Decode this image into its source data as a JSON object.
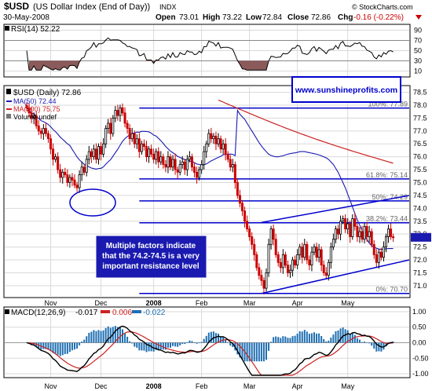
{
  "header": {
    "symbol": "$USD",
    "name": "(US Dollar Index (End of Day))",
    "exchange": "INDX",
    "date": "30-May-2008",
    "open_label": "Open",
    "open": "73.01",
    "high_label": "High",
    "high": "73.22",
    "low_label": "Low",
    "low": "72.84",
    "close_label": "Close",
    "close": "72.86",
    "chg_label": "Chg",
    "chg": "-0.16 (-0.22%)",
    "brand": "© StockCharts.com"
  },
  "colors": {
    "up": "#000000",
    "down": "#cc0000",
    "ma50": "#1a1ab0",
    "ma200": "#cc2222",
    "annot": "#0000cc",
    "hist": "#1f6fb2",
    "rsi_fill": "#8b5a5a",
    "grid": "#d9d9d9"
  },
  "rsi_panel": {
    "label": "RSI(14) 52.22",
    "ticks": [
      "90",
      "70",
      "50",
      "30",
      "10"
    ],
    "tick_values": [
      90,
      70,
      50,
      30,
      10
    ]
  },
  "price_panel": {
    "legend_title": "$USD (Daily) 72.86",
    "legend_ma50": "MA(50) 72.44",
    "legend_ma200": "MA(200) 75.75",
    "legend_vol": "Volume undef",
    "website": "www.sunshineprofits.com",
    "callout": [
      "Multiple factors indicate",
      "that the 74.2-74.5 is a very",
      "important resistance level"
    ],
    "fib_labels": [
      "100%: 77.89",
      "61.8%: 75.14",
      "50%: 74.29",
      "38.2%: 73.44",
      "0%: 70.70"
    ],
    "y_ticks": [
      "78.5",
      "78.0",
      "77.5",
      "77.0",
      "76.5",
      "76.0",
      "75.5",
      "75.0",
      "74.5",
      "74.0",
      "73.5",
      "73.0",
      "72.5",
      "72.0",
      "71.5",
      "71.0"
    ],
    "y_values": [
      78.5,
      78.0,
      77.5,
      77.0,
      76.5,
      76.0,
      75.5,
      75.0,
      74.5,
      74.0,
      73.5,
      73.0,
      72.5,
      72.0,
      71.5,
      71.0
    ]
  },
  "macd_panel": {
    "label": "MACD(12,26,9)",
    "macd": "-0.017",
    "signal": "0.006",
    "hist": "-0.022",
    "ticks": [
      "1.00",
      "0.50",
      "0.00",
      "-0.50",
      "-1.00"
    ],
    "tick_values": [
      1.0,
      0.5,
      0.0,
      -0.5,
      -1.0
    ]
  },
  "x_labels": [
    "Nov",
    "Dec",
    "2008",
    "Feb",
    "Mar",
    "Apr",
    "May"
  ],
  "chart_data": {
    "type": "candlestick",
    "title": "$USD (US Dollar Index (End of Day))",
    "ylim": [
      70.6,
      78.7
    ],
    "x_months": [
      "Nov",
      "Dec",
      "2008",
      "Feb",
      "Mar",
      "Apr",
      "May"
    ],
    "x_month_index": [
      10,
      31,
      53,
      73,
      93,
      113,
      134
    ],
    "closes": [
      77.9,
      77.7,
      77.5,
      77.6,
      77.2,
      77.0,
      76.9,
      77.1,
      76.9,
      76.7,
      76.3,
      75.9,
      76.0,
      75.5,
      75.2,
      75.4,
      75.3,
      75.0,
      75.2,
      75.1,
      74.9,
      74.8,
      75.3,
      75.6,
      75.4,
      75.9,
      76.2,
      76.0,
      76.3,
      75.9,
      76.4,
      76.1,
      76.5,
      77.1,
      77.3,
      76.9,
      77.5,
      77.8,
      77.6,
      77.9,
      77.7,
      77.3,
      77.1,
      76.7,
      76.9,
      76.5,
      76.7,
      76.2,
      76.5,
      76.4,
      76.0,
      76.3,
      76.1,
      75.9,
      76.2,
      75.8,
      76.0,
      75.7,
      75.6,
      76.0,
      75.6,
      75.9,
      75.5,
      75.4,
      75.7,
      75.8,
      75.5,
      75.9,
      76.0,
      75.6,
      75.4,
      75.2,
      75.5,
      75.7,
      76.2,
      76.5,
      76.9,
      76.7,
      76.8,
      76.5,
      76.7,
      76.3,
      76.5,
      76.1,
      75.9,
      75.6,
      75.7,
      75.0,
      74.5,
      74.2,
      73.9,
      73.5,
      73.2,
      72.9,
      72.6,
      72.2,
      71.7,
      71.4,
      71.2,
      70.9,
      71.5,
      72.6,
      73.2,
      72.8,
      72.2,
      71.9,
      71.7,
      72.2,
      71.8,
      71.5,
      71.6,
      72.0,
      71.8,
      72.2,
      72.5,
      72.1,
      72.6,
      72.0,
      71.8,
      72.3,
      72.5,
      72.1,
      72.4,
      71.8,
      71.5,
      71.4,
      71.9,
      72.5,
      72.8,
      73.2,
      73.0,
      73.5,
      73.6,
      73.2,
      73.4,
      72.9,
      73.6,
      73.3,
      72.9,
      73.1,
      72.8,
      73.3,
      72.9,
      73.1,
      72.6,
      72.2,
      71.9,
      72.3,
      72.1,
      72.5,
      72.9,
      73.2,
      72.9,
      72.86
    ],
    "ma50": [
      77.8,
      77.65,
      77.55,
      77.45,
      77.3,
      77.15,
      77.0,
      76.85,
      76.7,
      76.55,
      76.42,
      76.3,
      76.2,
      76.1,
      76.05,
      76.02,
      76.0,
      76.0,
      76.02,
      76.04,
      76.07,
      76.1,
      76.12,
      76.14,
      76.15,
      76.17,
      76.2,
      76.2,
      76.2,
      76.18,
      76.16,
      76.14,
      76.12,
      76.1,
      76.07,
      76.04,
      76.0,
      75.96,
      75.9,
      75.8,
      75.7,
      75.55,
      75.4,
      75.2,
      75.0,
      74.8,
      74.55,
      74.3,
      74.05,
      73.8,
      73.55,
      73.35,
      73.15,
      72.95,
      72.8,
      72.65,
      72.55,
      72.5,
      72.45,
      72.42,
      72.41,
      72.42,
      72.43,
      72.44
    ],
    "ma50_start_index": 88,
    "ma200_start": 78.2,
    "ma200_end": 75.75,
    "ma200_start_index": 80,
    "fibonacci": [
      77.89,
      75.14,
      74.29,
      73.44,
      70.7
    ],
    "channel_upper": [
      [
        98,
        73.45
      ],
      [
        160,
        74.5
      ]
    ],
    "channel_lower": [
      [
        98,
        70.7
      ],
      [
        160,
        72.0
      ]
    ],
    "rsi_band": [
      30,
      70
    ],
    "macd_range": [
      -1.1,
      1.1
    ],
    "last_price": 72.86
  }
}
